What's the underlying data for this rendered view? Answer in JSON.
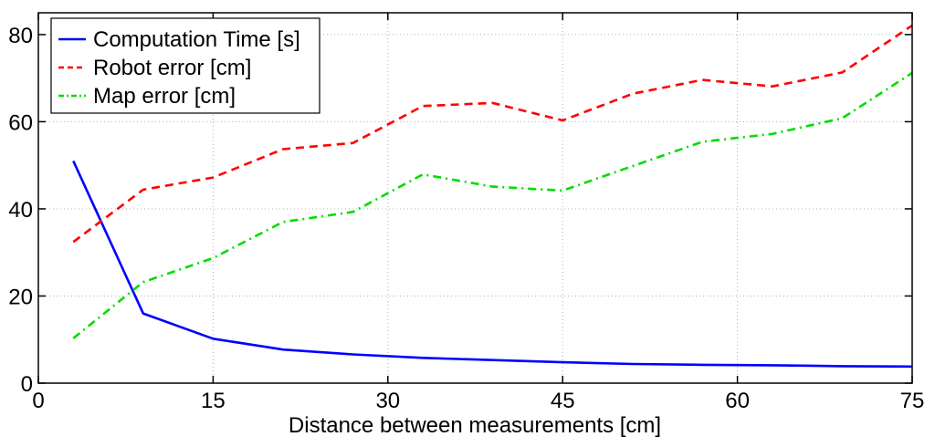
{
  "chart_data": {
    "type": "line",
    "title": "",
    "xlabel": "Distance between measurements [cm]",
    "ylabel": "",
    "xlim": [
      0,
      75
    ],
    "ylim": [
      0,
      85
    ],
    "xticks": [
      0,
      15,
      30,
      45,
      60,
      75
    ],
    "yticks": [
      0,
      20,
      40,
      60,
      80
    ],
    "grid": true,
    "legend_position": "top-left",
    "x": [
      3,
      9,
      15,
      21,
      27,
      33,
      39,
      45,
      51,
      57,
      63,
      69,
      75
    ],
    "series": [
      {
        "name": "Computation Time [s]",
        "color": "#0000ff",
        "style": "solid",
        "values": [
          51,
          16,
          10.2,
          7.7,
          6.6,
          5.8,
          5.3,
          4.8,
          4.4,
          4.2,
          4.1,
          3.9,
          3.8
        ]
      },
      {
        "name": "Robot error [cm]",
        "color": "#ff0000",
        "style": "dashed",
        "values": [
          32.4,
          44.4,
          47.2,
          53.7,
          55.1,
          63.6,
          64.3,
          60.3,
          66.4,
          69.6,
          68.1,
          71.3,
          82.1
        ]
      },
      {
        "name": "Map error [cm]",
        "color": "#00dd00",
        "style": "dashdot",
        "values": [
          10.3,
          23.2,
          28.7,
          37,
          39.3,
          47.9,
          45.1,
          44.2,
          49.8,
          55.4,
          57.2,
          60.8,
          71.2
        ]
      }
    ]
  }
}
